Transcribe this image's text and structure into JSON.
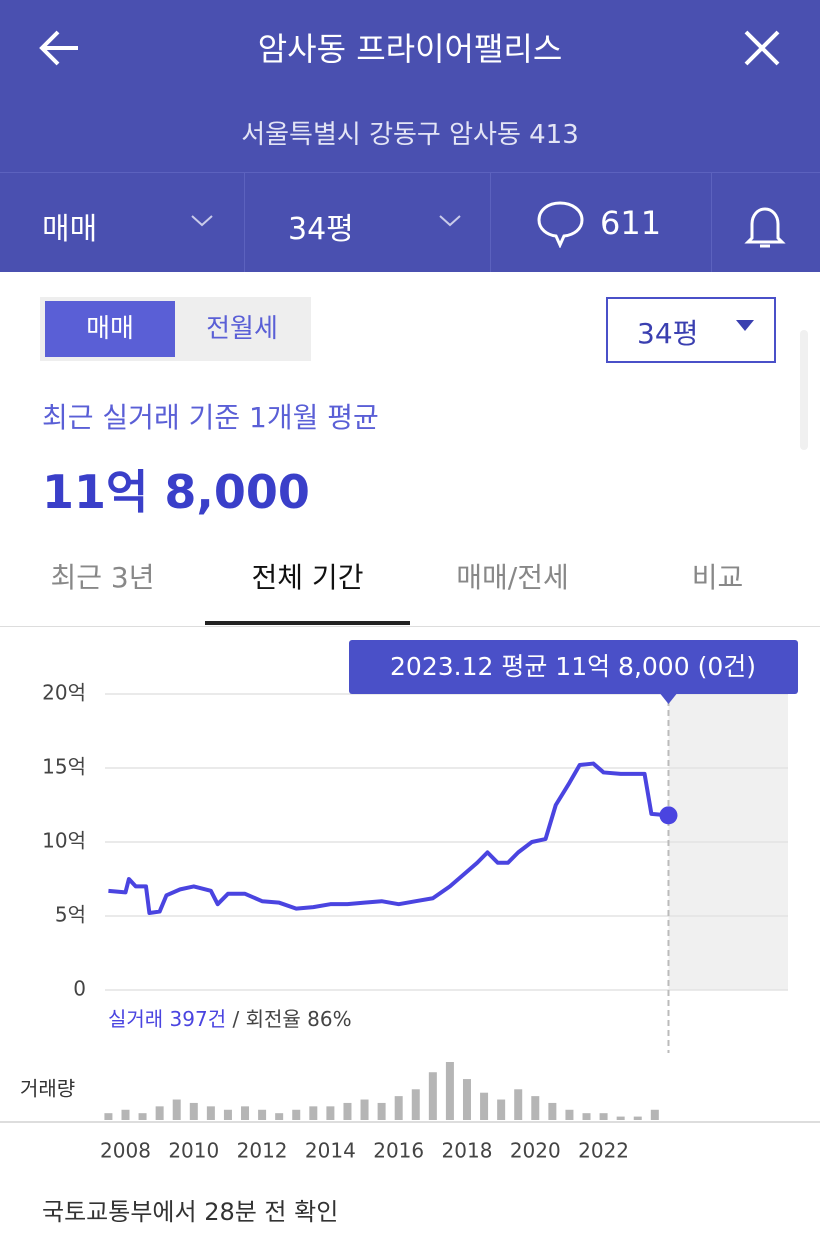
{
  "header": {
    "title": "암사동 프라이어팰리스",
    "address": "서울특별시 강동구 암사동 413"
  },
  "toolbar": {
    "trade_type": "매매",
    "area": "34평",
    "comments": "611"
  },
  "toggle": {
    "options": [
      "매매",
      "전월세"
    ],
    "selected": 0
  },
  "area_select": "34평",
  "summary": {
    "caption": "최근 실거래 기준 1개월 평균",
    "price": "11억 8,000"
  },
  "tabs": {
    "items": [
      "최근 3년",
      "전체 기간",
      "매매/전세",
      "비교"
    ],
    "selected": 1
  },
  "chart_data": {
    "type": "line",
    "tooltip": "2023.12 평균 11억 8,000 (0건)",
    "color": "#4a44e0",
    "x": [
      2007.5,
      2008.0,
      2008.1,
      2008.3,
      2008.6,
      2008.7,
      2009.0,
      2009.2,
      2009.6,
      2010.0,
      2010.5,
      2010.7,
      2011.0,
      2011.5,
      2012.0,
      2012.5,
      2013.0,
      2013.5,
      2014.0,
      2014.5,
      2015.0,
      2015.5,
      2016.0,
      2016.5,
      2017.0,
      2017.5,
      2018.0,
      2018.3,
      2018.6,
      2018.9,
      2019.2,
      2019.5,
      2019.9,
      2020.3,
      2020.6,
      2021.0,
      2021.3,
      2021.7,
      2022.0,
      2022.5,
      2023.2,
      2023.4,
      2023.9
    ],
    "values": [
      6.7,
      6.6,
      7.5,
      7.0,
      7.0,
      5.2,
      5.3,
      6.4,
      6.8,
      7.0,
      6.7,
      5.8,
      6.5,
      6.5,
      6.0,
      5.9,
      5.5,
      5.6,
      5.8,
      5.8,
      5.9,
      6.0,
      5.8,
      6.0,
      6.2,
      7.0,
      8.0,
      8.6,
      9.3,
      8.6,
      8.6,
      9.3,
      10.0,
      10.2,
      12.5,
      14.0,
      15.2,
      15.3,
      14.7,
      14.6,
      14.6,
      11.9,
      11.8
    ],
    "xlim": [
      2007.4,
      2027.4
    ],
    "xticks": [
      2008,
      2010,
      2012,
      2014,
      2016,
      2018,
      2020,
      2022
    ],
    "ylim": [
      0,
      20
    ],
    "yticks": [
      0,
      {
        "value": 5,
        "label": "5억"
      },
      {
        "value": 10,
        "label": "10억"
      },
      {
        "value": 15,
        "label": "15억"
      },
      {
        "value": 20,
        "label": "20억"
      }
    ],
    "grid": true,
    "trade_summary": {
      "count": "실거래 397건",
      "turnover": "/ 회전율 86%"
    },
    "volume": {
      "label": "거래량",
      "color": "#b5b5b5",
      "x": [
        2007.5,
        2008.0,
        2008.5,
        2009.0,
        2009.5,
        2010.0,
        2010.5,
        2011.0,
        2011.5,
        2012.0,
        2012.5,
        2013.0,
        2013.5,
        2014.0,
        2014.5,
        2015.0,
        2015.5,
        2016.0,
        2016.5,
        2017.0,
        2017.5,
        2018.0,
        2018.5,
        2019.0,
        2019.5,
        2020.0,
        2020.5,
        2021.0,
        2021.5,
        2022.0,
        2022.5,
        2023.0,
        2023.5
      ],
      "values": [
        2,
        3,
        2,
        4,
        6,
        5,
        4,
        3,
        4,
        3,
        2,
        3,
        4,
        4,
        5,
        6,
        5,
        7,
        9,
        14,
        17,
        12,
        8,
        6,
        9,
        7,
        5,
        3,
        2,
        2,
        1,
        1,
        3
      ]
    }
  },
  "footer": "국토교통부에서 28분 전 확인"
}
